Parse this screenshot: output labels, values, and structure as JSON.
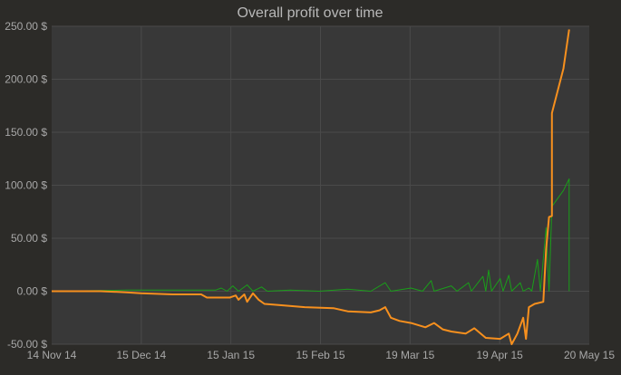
{
  "chart_data": {
    "type": "line",
    "title": "Overall profit over time",
    "xlabel": "",
    "ylabel": "",
    "x_ticks": [
      "14 Nov 14",
      "15 Dec 14",
      "15 Jan 15",
      "15 Feb 15",
      "19 Mar 15",
      "19 Apr 15",
      "20 May 15"
    ],
    "y_ticks": [
      "250.00 $",
      "200.00 $",
      "150.00 $",
      "100.00 $",
      "50.00 $",
      "0.00 $",
      "-50.00 $"
    ],
    "ylim": [
      -50,
      250
    ],
    "xlim": [
      "2014-11-14",
      "2015-05-20"
    ],
    "grid": true,
    "legend": "none",
    "colors": {
      "background": "#2c2b28",
      "plot_area": "#383838",
      "grid": "#4a4a4a",
      "text": "#a8a8a8",
      "title": "#b8b8b8"
    },
    "series": [
      {
        "color": "#f7901e",
        "points": [
          [
            "2014-11-14",
            0
          ],
          [
            "2014-12-01",
            0
          ],
          [
            "2014-12-10",
            -1
          ],
          [
            "2014-12-15",
            -2
          ],
          [
            "2014-12-26",
            -3
          ],
          [
            "2015-01-05",
            -3
          ],
          [
            "2015-01-07",
            -6
          ],
          [
            "2015-01-15",
            -6
          ],
          [
            "2015-01-17",
            -4
          ],
          [
            "2015-01-18",
            -8
          ],
          [
            "2015-01-20",
            -3
          ],
          [
            "2015-01-21",
            -10
          ],
          [
            "2015-01-23",
            -2
          ],
          [
            "2015-01-25",
            -8
          ],
          [
            "2015-01-27",
            -12
          ],
          [
            "2015-02-01",
            -13
          ],
          [
            "2015-02-10",
            -15
          ],
          [
            "2015-02-20",
            -16
          ],
          [
            "2015-02-25",
            -19
          ],
          [
            "2015-03-05",
            -20
          ],
          [
            "2015-03-08",
            -18
          ],
          [
            "2015-03-10",
            -15
          ],
          [
            "2015-03-12",
            -25
          ],
          [
            "2015-03-15",
            -28
          ],
          [
            "2015-03-19",
            -30
          ],
          [
            "2015-03-24",
            -34
          ],
          [
            "2015-03-27",
            -30
          ],
          [
            "2015-03-30",
            -36
          ],
          [
            "2015-04-02",
            -38
          ],
          [
            "2015-04-07",
            -40
          ],
          [
            "2015-04-10",
            -35
          ],
          [
            "2015-04-14",
            -44
          ],
          [
            "2015-04-19",
            -45
          ],
          [
            "2015-04-22",
            -40
          ],
          [
            "2015-04-23",
            -50
          ],
          [
            "2015-04-25",
            -40
          ],
          [
            "2015-04-27",
            -25
          ],
          [
            "2015-04-28",
            -45
          ],
          [
            "2015-04-29",
            -15
          ],
          [
            "2015-05-01",
            -12
          ],
          [
            "2015-05-04",
            -10
          ],
          [
            "2015-05-05",
            40
          ],
          [
            "2015-05-06",
            70
          ],
          [
            "2015-05-07",
            71
          ],
          [
            "2015-05-07",
            168
          ],
          [
            "2015-05-11",
            210
          ],
          [
            "2015-05-13",
            247
          ]
        ]
      },
      {
        "color": "#1a9e1a",
        "points": [
          [
            "2014-11-14",
            0
          ],
          [
            "2014-12-10",
            1
          ],
          [
            "2015-01-10",
            1
          ],
          [
            "2015-01-12",
            3
          ],
          [
            "2015-01-14",
            0
          ],
          [
            "2015-01-16",
            5
          ],
          [
            "2015-01-18",
            0
          ],
          [
            "2015-01-21",
            6
          ],
          [
            "2015-01-23",
            0
          ],
          [
            "2015-01-26",
            4
          ],
          [
            "2015-01-28",
            0
          ],
          [
            "2015-02-05",
            1
          ],
          [
            "2015-02-15",
            0
          ],
          [
            "2015-02-25",
            2
          ],
          [
            "2015-03-05",
            0
          ],
          [
            "2015-03-10",
            8
          ],
          [
            "2015-03-12",
            0
          ],
          [
            "2015-03-19",
            3
          ],
          [
            "2015-03-23",
            0
          ],
          [
            "2015-03-26",
            10
          ],
          [
            "2015-03-27",
            0
          ],
          [
            "2015-04-02",
            5
          ],
          [
            "2015-04-04",
            0
          ],
          [
            "2015-04-08",
            8
          ],
          [
            "2015-04-09",
            0
          ],
          [
            "2015-04-13",
            14
          ],
          [
            "2015-04-14",
            0
          ],
          [
            "2015-04-15",
            20
          ],
          [
            "2015-04-16",
            0
          ],
          [
            "2015-04-19",
            12
          ],
          [
            "2015-04-20",
            0
          ],
          [
            "2015-04-22",
            15
          ],
          [
            "2015-04-23",
            0
          ],
          [
            "2015-04-26",
            8
          ],
          [
            "2015-04-27",
            0
          ],
          [
            "2015-04-29",
            3
          ],
          [
            "2015-04-30",
            0
          ],
          [
            "2015-05-02",
            30
          ],
          [
            "2015-05-03",
            0
          ],
          [
            "2015-05-05",
            60
          ],
          [
            "2015-05-06",
            0
          ],
          [
            "2015-05-07",
            80
          ],
          [
            "2015-05-11",
            95
          ],
          [
            "2015-05-13",
            106
          ],
          [
            "2015-05-13",
            0
          ]
        ]
      }
    ]
  }
}
